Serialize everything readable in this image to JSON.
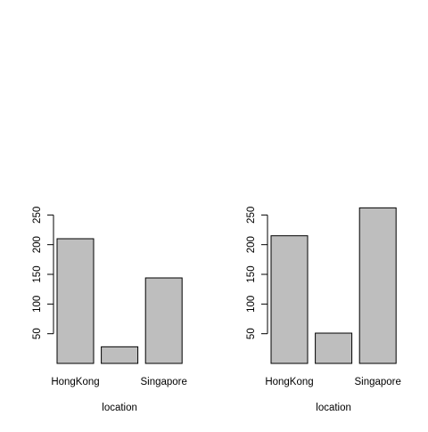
{
  "chart_data": [
    {
      "type": "bar",
      "categories": [
        "HongKong",
        "",
        "Singapore"
      ],
      "values": [
        210,
        28,
        144
      ],
      "title": "",
      "xlabel": "location",
      "ylabel": "",
      "ylim": [
        0,
        250
      ],
      "yticks": [
        "50",
        "100",
        "150",
        "200",
        "250"
      ],
      "bar_color": "#bebebe",
      "grid": false
    },
    {
      "type": "bar",
      "categories": [
        "HongKong",
        "",
        "Singapore"
      ],
      "values": [
        215,
        51,
        262
      ],
      "title": "",
      "xlabel": "location",
      "ylabel": "",
      "ylim": [
        0,
        250
      ],
      "yticks": [
        "50",
        "100",
        "150",
        "200",
        "250"
      ],
      "bar_color": "#bebebe",
      "grid": false
    }
  ]
}
